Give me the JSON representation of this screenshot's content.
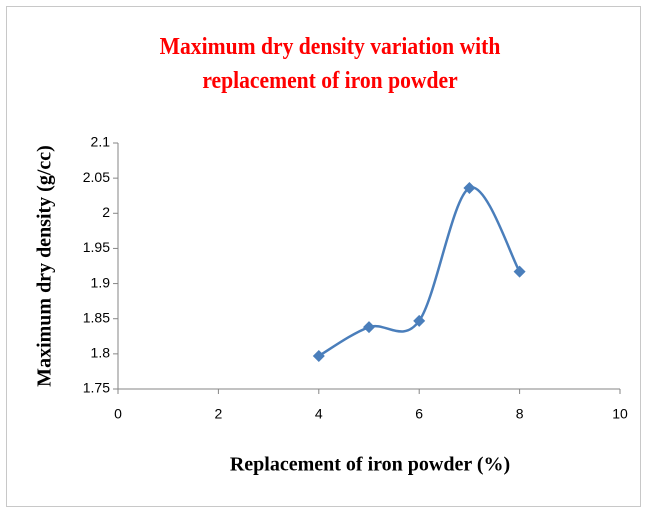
{
  "chart_data": {
    "type": "line",
    "title": "Maximum dry density variation with replacement of iron powder",
    "xlabel": "Replacement of iron powder (%)",
    "ylabel": "Maximum dry density (g/cc)",
    "x": [
      4,
      5,
      6,
      7,
      8
    ],
    "series": [
      {
        "name": "Maximum dry density",
        "color": "#4a7ebb",
        "values": [
          1.797,
          1.838,
          1.847,
          2.036,
          1.917
        ]
      }
    ],
    "xlim": [
      0,
      10
    ],
    "xticks": [
      0,
      2,
      4,
      6,
      8,
      10
    ],
    "ylim": [
      1.75,
      2.1
    ],
    "yticks": [
      1.75,
      1.8,
      1.85,
      1.9,
      1.95,
      2,
      2.05,
      2.1
    ],
    "grid": false,
    "smooth": true,
    "marker": "diamond"
  }
}
